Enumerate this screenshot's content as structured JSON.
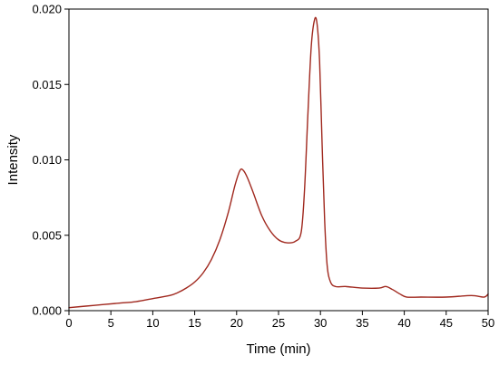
{
  "chart_data": {
    "type": "line",
    "title": "",
    "xlabel": "Time (min)",
    "ylabel": "Intensity",
    "xlim": [
      0,
      50
    ],
    "ylim": [
      0,
      0.02
    ],
    "grid": false,
    "legend": "none",
    "x_ticks": [
      0,
      5,
      10,
      15,
      20,
      25,
      30,
      35,
      40,
      45,
      50
    ],
    "x_tick_labels": [
      "0",
      "5",
      "10",
      "15",
      "20",
      "25",
      "30",
      "35",
      "40",
      "45",
      "50"
    ],
    "y_ticks": [
      0,
      0.005,
      0.01,
      0.015,
      0.02
    ],
    "y_tick_labels": [
      "0.000",
      "0.005",
      "0.010",
      "0.015",
      "0.020"
    ],
    "series": [
      {
        "color": "#a0281e",
        "points": [
          [
            0,
            0.0002
          ],
          [
            2,
            0.0003
          ],
          [
            4,
            0.0004
          ],
          [
            6,
            0.0005
          ],
          [
            8,
            0.0006
          ],
          [
            10,
            0.0008
          ],
          [
            12,
            0.001
          ],
          [
            13,
            0.0012
          ],
          [
            14,
            0.0015
          ],
          [
            15,
            0.0019
          ],
          [
            16,
            0.0025
          ],
          [
            17,
            0.0034
          ],
          [
            18,
            0.0047
          ],
          [
            19,
            0.0065
          ],
          [
            19.8,
            0.0083
          ],
          [
            20.4,
            0.0093
          ],
          [
            20.8,
            0.0093
          ],
          [
            21.3,
            0.0088
          ],
          [
            22,
            0.0078
          ],
          [
            23,
            0.0063
          ],
          [
            24,
            0.0053
          ],
          [
            25,
            0.0047
          ],
          [
            26,
            0.0045
          ],
          [
            27,
            0.0046
          ],
          [
            27.7,
            0.0052
          ],
          [
            28.1,
            0.008
          ],
          [
            28.5,
            0.013
          ],
          [
            28.9,
            0.0175
          ],
          [
            29.3,
            0.0193
          ],
          [
            29.6,
            0.019
          ],
          [
            29.9,
            0.0165
          ],
          [
            30.2,
            0.011
          ],
          [
            30.5,
            0.006
          ],
          [
            30.8,
            0.003
          ],
          [
            31.2,
            0.0019
          ],
          [
            31.8,
            0.0016
          ],
          [
            33,
            0.0016
          ],
          [
            35,
            0.0015
          ],
          [
            37,
            0.0015
          ],
          [
            37.8,
            0.0016
          ],
          [
            38.6,
            0.0014
          ],
          [
            39.5,
            0.0011
          ],
          [
            40.3,
            0.0009
          ],
          [
            42,
            0.0009
          ],
          [
            45,
            0.0009
          ],
          [
            48,
            0.001
          ],
          [
            49.5,
            0.0009
          ],
          [
            50,
            0.0011
          ]
        ]
      }
    ]
  }
}
